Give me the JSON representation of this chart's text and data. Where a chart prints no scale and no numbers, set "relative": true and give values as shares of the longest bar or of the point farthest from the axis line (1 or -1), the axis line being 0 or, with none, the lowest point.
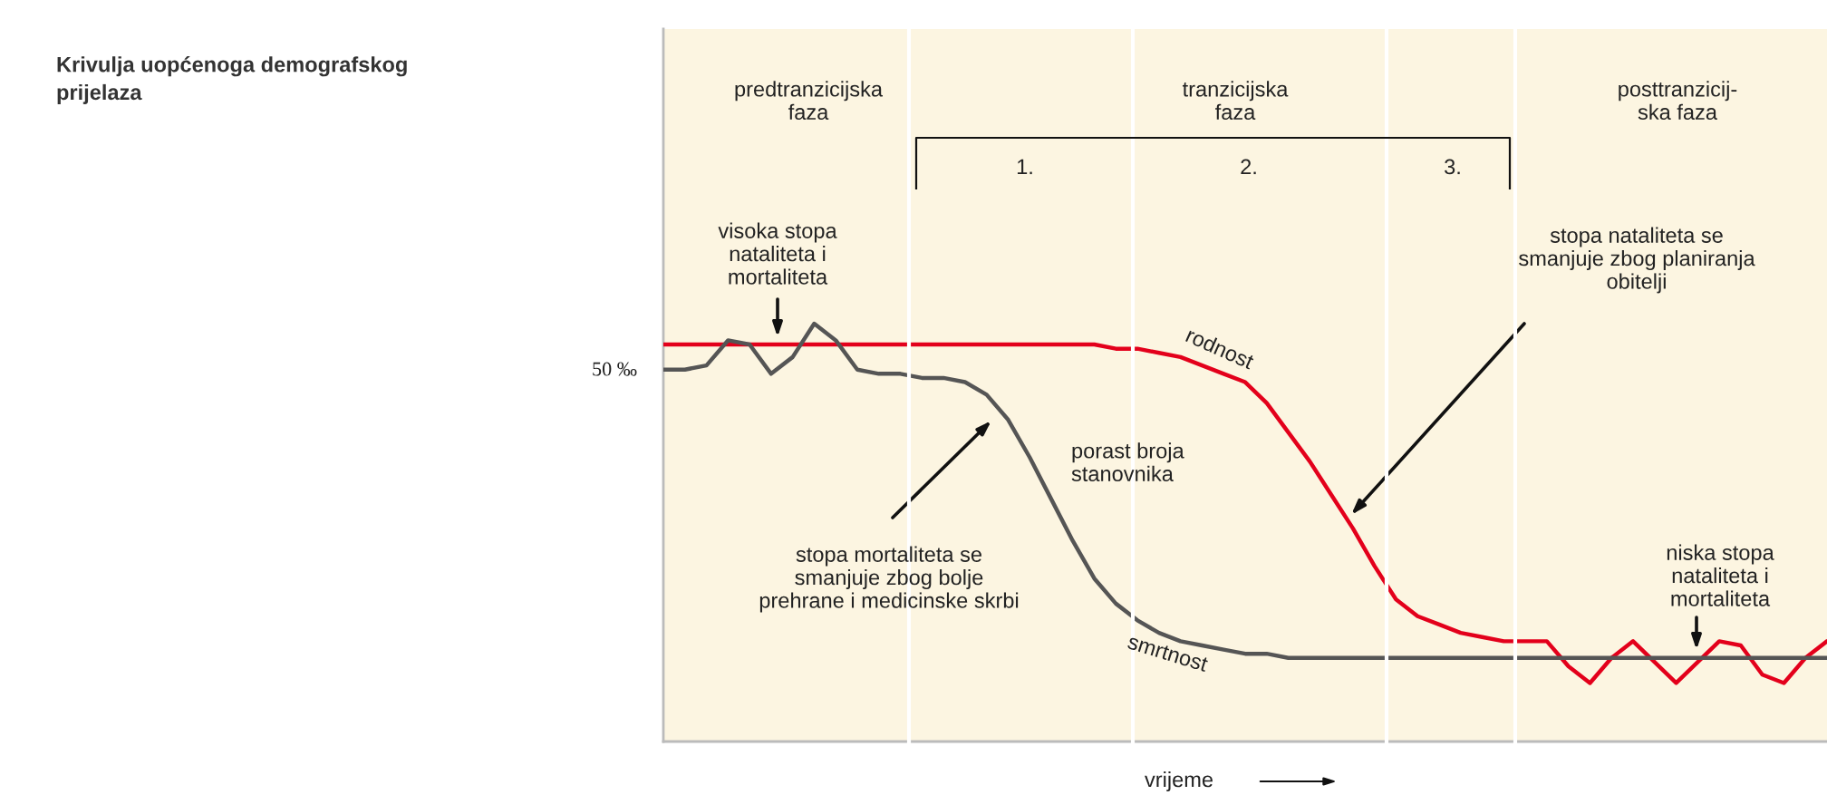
{
  "chart_data": {
    "type": "line",
    "title": "Krivulja uopćenoga demografskog\nprijelaza",
    "xlabel": "vrijeme",
    "relative": true,
    "categories": [
      null,
      null,
      null,
      null,
      null,
      null,
      null,
      null,
      null,
      null,
      null,
      null,
      null,
      null,
      null,
      null,
      null,
      null,
      null,
      null,
      null,
      null,
      null,
      null,
      null,
      null,
      null,
      null,
      null,
      null,
      null,
      null,
      null,
      null,
      null,
      null,
      null,
      null,
      null,
      null,
      null,
      null,
      null,
      null,
      null,
      null,
      null,
      null,
      null,
      null,
      null,
      null,
      null,
      null,
      null
    ],
    "series": [
      {
        "name": "rodnost",
        "color": "#e3001b",
        "values": [
          0.95,
          0.95,
          0.95,
          0.95,
          0.95,
          0.95,
          0.95,
          0.95,
          0.95,
          0.95,
          0.95,
          0.95,
          0.95,
          0.95,
          0.95,
          0.95,
          0.95,
          0.95,
          0.95,
          0.95,
          0.95,
          0.94,
          0.94,
          0.93,
          0.92,
          0.9,
          0.88,
          0.86,
          0.81,
          0.74,
          0.67,
          0.59,
          0.51,
          0.42,
          0.34,
          0.3,
          0.28,
          0.26,
          0.25,
          0.24,
          0.24,
          0.24,
          0.18,
          0.14,
          0.2,
          0.24,
          0.19,
          0.14,
          0.19,
          0.24,
          0.23,
          0.16,
          0.14,
          0.2,
          0.24
        ]
      },
      {
        "name": "smrtnost",
        "color": "#555555",
        "values": [
          0.89,
          0.89,
          0.9,
          0.96,
          0.95,
          0.88,
          0.92,
          1.0,
          0.96,
          0.89,
          0.88,
          0.88,
          0.87,
          0.87,
          0.86,
          0.83,
          0.77,
          0.68,
          0.58,
          0.48,
          0.39,
          0.33,
          0.29,
          0.26,
          0.24,
          0.23,
          0.22,
          0.21,
          0.21,
          0.2,
          0.2,
          0.2,
          0.2,
          0.2,
          0.2,
          0.2,
          0.2,
          0.2,
          0.2,
          0.2,
          0.2,
          0.2,
          0.2,
          0.2,
          0.2,
          0.2,
          0.2,
          0.2,
          0.2,
          0.2,
          0.2,
          0.2,
          0.2,
          0.2,
          0.2
        ]
      }
    ],
    "annotations": [
      "predtranzicijska\nfaza",
      "tranzicijska\nfaza",
      "posttranzicij-\nska faza",
      "1.",
      "2.",
      "3.",
      "visoka stopa\nnataliteta i\nmortaliteta",
      "stopa nataliteta se\nsmanjuje zbog planiranja\nobitelji",
      "porast broja\nstanovnika",
      "stopa mortaliteta se\nsmanjuje zbog bolje\nprehrane i medicinske skrbi",
      "niska stopa\nnataliteta i\nmortaliteta",
      "50 ‰"
    ]
  }
}
